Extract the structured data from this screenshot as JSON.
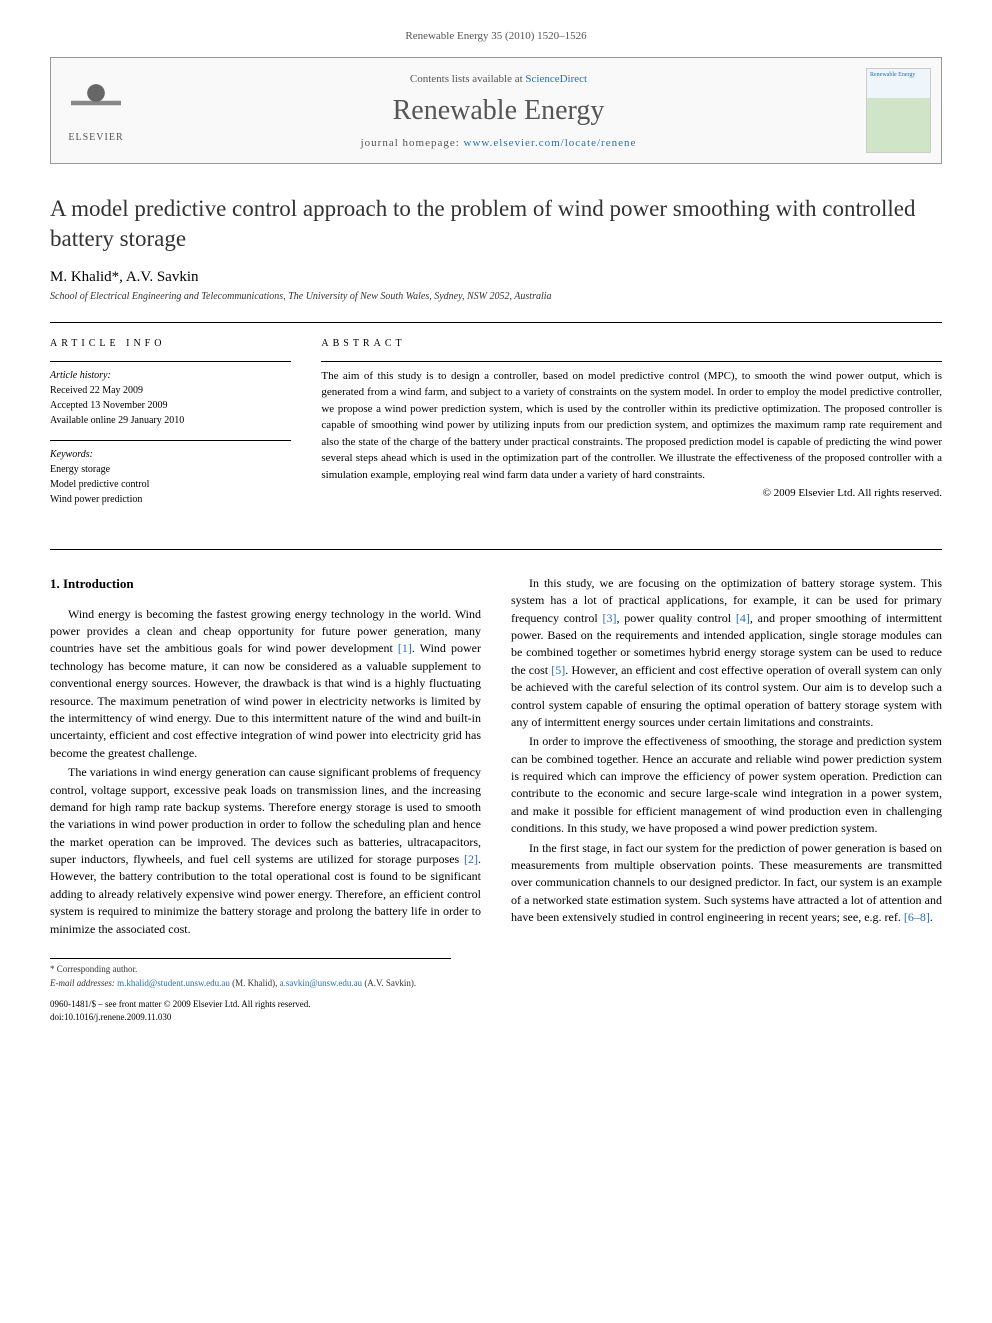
{
  "running_head": "Renewable Energy 35 (2010) 1520–1526",
  "journal_box": {
    "publisher": "ELSEVIER",
    "contents_prefix": "Contents lists available at ",
    "contents_link": "ScienceDirect",
    "journal_name": "Renewable Energy",
    "homepage_prefix": "journal homepage: ",
    "homepage_url": "www.elsevier.com/locate/renene",
    "cover_label": "Renewable Energy"
  },
  "article": {
    "title": "A model predictive control approach to the problem of wind power smoothing with controlled battery storage",
    "authors": "M. Khalid*, A.V. Savkin",
    "affiliation": "School of Electrical Engineering and Telecommunications, The University of New South Wales, Sydney, NSW 2052, Australia"
  },
  "article_info": {
    "heading": "article info",
    "history_label": "Article history:",
    "received": "Received 22 May 2009",
    "accepted": "Accepted 13 November 2009",
    "online": "Available online 29 January 2010",
    "keywords_label": "Keywords:",
    "kw1": "Energy storage",
    "kw2": "Model predictive control",
    "kw3": "Wind power prediction"
  },
  "abstract": {
    "heading": "abstract",
    "text": "The aim of this study is to design a controller, based on model predictive control (MPC), to smooth the wind power output, which is generated from a wind farm, and subject to a variety of constraints on the system model. In order to employ the model predictive controller, we propose a wind power prediction system, which is used by the controller within its predictive optimization. The proposed controller is capable of smoothing wind power by utilizing inputs from our prediction system, and optimizes the maximum ramp rate requirement and also the state of the charge of the battery under practical constraints. The proposed prediction model is capable of predicting the wind power several steps ahead which is used in the optimization part of the controller. We illustrate the effectiveness of the proposed controller with a simulation example, employing real wind farm data under a variety of hard constraints.",
    "copyright": "© 2009 Elsevier Ltd. All rights reserved."
  },
  "section1": {
    "heading": "1. Introduction",
    "p1a": "Wind energy is becoming the fastest growing energy technology in the world. Wind power provides a clean and cheap opportunity for future power generation, many countries have set the ambitious goals for wind power development ",
    "ref1": "[1]",
    "p1b": ". Wind power technology has become mature, it can now be considered as a valuable supplement to conventional energy sources. However, the drawback is that wind is a highly fluctuating resource. The maximum penetration of wind power in electricity networks is limited by the intermittency of wind energy. Due to this intermittent nature of the wind and built-in uncertainty, efficient and cost effective integration of wind power into electricity grid has become the greatest challenge.",
    "p2a": "The variations in wind energy generation can cause significant problems of frequency control, voltage support, excessive peak loads on transmission lines, and the increasing demand for high ramp rate backup systems. Therefore energy storage is used to smooth the variations in wind power production in order to follow the scheduling plan and hence the market operation can be improved. The devices such as batteries, ultracapacitors, super inductors, flywheels, and fuel cell systems are utilized for storage purposes ",
    "ref2": "[2]",
    "p2b": ". However, the battery contribution to the total operational cost is found to be significant adding to already relatively expensive wind power energy. Therefore, an efficient control ",
    "p2c": "system is required to minimize the battery storage and prolong the battery life in order to minimize the associated cost.",
    "p3a": "In this study, we are focusing on the optimization of battery storage system. This system has a lot of practical applications, for example, it can be used for primary frequency control ",
    "ref3": "[3]",
    "p3b": ", power quality control ",
    "ref4": "[4]",
    "p3c": ", and proper smoothing of intermittent power. Based on the requirements and intended application, single storage modules can be combined together or sometimes hybrid energy storage system can be used to reduce the cost ",
    "ref5": "[5]",
    "p3d": ". However, an efficient and cost effective operation of overall system can only be achieved with the careful selection of its control system. Our aim is to develop such a control system capable of ensuring the optimal operation of battery storage system with any of intermittent energy sources under certain limitations and constraints.",
    "p4": "In order to improve the effectiveness of smoothing, the storage and prediction system can be combined together. Hence an accurate and reliable wind power prediction system is required which can improve the efficiency of power system operation. Prediction can contribute to the economic and secure large-scale wind integration in a power system, and make it possible for efficient management of wind production even in challenging conditions. In this study, we have proposed a wind power prediction system.",
    "p5a": "In the first stage, in fact our system for the prediction of power generation is based on measurements from multiple observation points. These measurements are transmitted over communication channels to our designed predictor. In fact, our system is an example of a networked state estimation system. Such systems have attracted a lot of attention and have been extensively studied in control engineering in recent years; see, e.g. ref. ",
    "ref678": "[6–8]",
    "p5b": "."
  },
  "footer": {
    "corresponding": "* Corresponding author.",
    "email_label": "E-mail addresses: ",
    "email1": "m.khalid@student.unsw.edu.au",
    "email1_who": " (M. Khalid), ",
    "email2": "a.savkin@unsw.edu.au",
    "email2_who": " (A.V. Savkin).",
    "front_matter": "0960-1481/$ – see front matter © 2009 Elsevier Ltd. All rights reserved.",
    "doi": "doi:10.1016/j.renene.2009.11.030"
  },
  "colors": {
    "link": "#2a6fb5",
    "text": "#000000",
    "muted": "#555555",
    "border": "#000000"
  }
}
